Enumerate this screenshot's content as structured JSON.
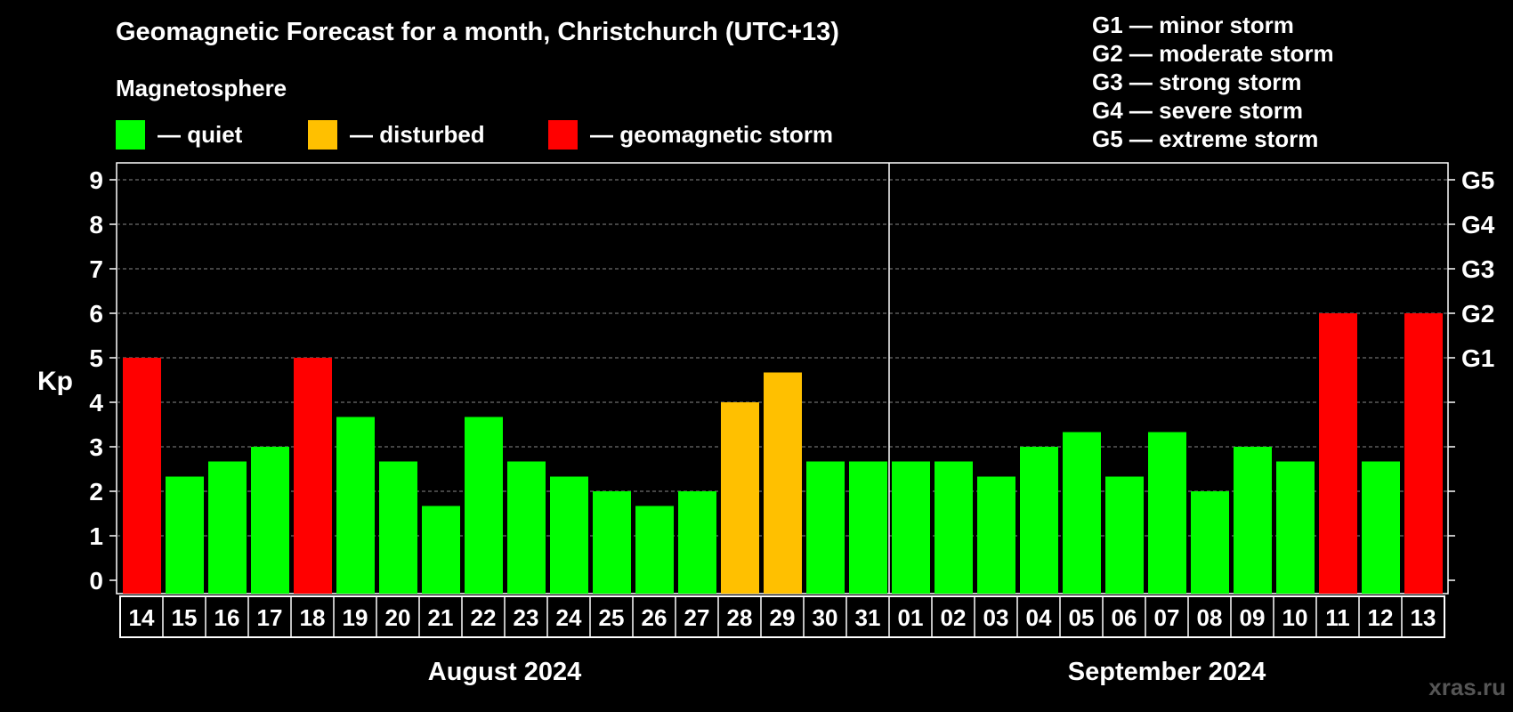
{
  "header": {
    "title": "Geomagnetic Forecast for a month, Christchurch (UTC+13)",
    "subtitle": "Magnetosphere"
  },
  "legend": {
    "items": [
      {
        "label": "— quiet",
        "color": "#00ff00"
      },
      {
        "label": "— disturbed",
        "color": "#ffc000"
      },
      {
        "label": "— geomagnetic storm",
        "color": "#ff0000"
      }
    ]
  },
  "storm_legend": [
    "G1 — minor storm",
    "G2 — moderate storm",
    "G3 — strong storm",
    "G4 — severe storm",
    "G5 — extreme storm"
  ],
  "watermark": "xras.ru",
  "chart_data": {
    "type": "bar",
    "title": "Geomagnetic Forecast for a month, Christchurch (UTC+13)",
    "ylabel": "Kp",
    "ylim": [
      0,
      9
    ],
    "yticks": [
      "0",
      "1",
      "2",
      "3",
      "4",
      "5",
      "6",
      "7",
      "8",
      "9"
    ],
    "right_axis_labels": [
      {
        "value": 5,
        "label": "G1"
      },
      {
        "value": 6,
        "label": "G2"
      },
      {
        "value": 7,
        "label": "G3"
      },
      {
        "value": 8,
        "label": "G4"
      },
      {
        "value": 9,
        "label": "G5"
      }
    ],
    "categories": [
      "14",
      "15",
      "16",
      "17",
      "18",
      "19",
      "20",
      "21",
      "22",
      "23",
      "24",
      "25",
      "26",
      "27",
      "28",
      "29",
      "30",
      "31",
      "01",
      "02",
      "03",
      "04",
      "05",
      "06",
      "07",
      "08",
      "09",
      "10",
      "11",
      "12",
      "13"
    ],
    "values": [
      5,
      2.33,
      2.67,
      3,
      5,
      3.67,
      2.67,
      1.67,
      3.67,
      2.67,
      2.33,
      2,
      1.67,
      2,
      4,
      4.67,
      2.67,
      2.67,
      2.67,
      2.67,
      2.33,
      3,
      3.33,
      2.33,
      3.33,
      2,
      3,
      2.67,
      6,
      2.67,
      6
    ],
    "status": [
      "storm",
      "quiet",
      "quiet",
      "quiet",
      "storm",
      "quiet",
      "quiet",
      "quiet",
      "quiet",
      "quiet",
      "quiet",
      "quiet",
      "quiet",
      "quiet",
      "disturbed",
      "disturbed",
      "quiet",
      "quiet",
      "quiet",
      "quiet",
      "quiet",
      "quiet",
      "quiet",
      "quiet",
      "quiet",
      "quiet",
      "quiet",
      "quiet",
      "storm",
      "quiet",
      "storm"
    ],
    "colors": {
      "quiet": "#00ff00",
      "disturbed": "#ffc000",
      "storm": "#ff0000"
    },
    "months": [
      {
        "label": "August 2024",
        "first_index": 0,
        "last_index": 17
      },
      {
        "label": "September 2024",
        "first_index": 18,
        "last_index": 30
      }
    ],
    "grid": "dashed at each integer Kp"
  }
}
